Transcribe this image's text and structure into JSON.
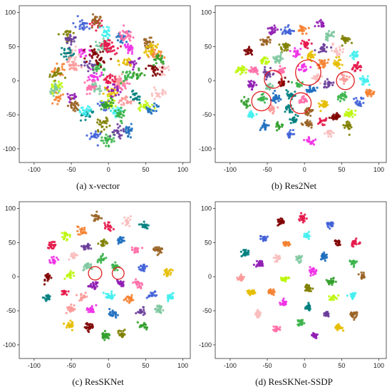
{
  "figure": {
    "panels": [
      {
        "caption": "(a) x-vector",
        "highlight_circles": []
      },
      {
        "caption": "(b) Res2Net",
        "highlight_circles": [
          {
            "x": -58,
            "y": -30,
            "r": 13
          },
          {
            "x": -42,
            "y": 2,
            "r": 12
          },
          {
            "x": 5,
            "y": 12,
            "r": 17
          },
          {
            "x": -5,
            "y": -33,
            "r": 14
          },
          {
            "x": 55,
            "y": 0,
            "r": 12
          }
        ]
      },
      {
        "caption": "(c) ResSKNet",
        "highlight_circles": [
          {
            "x": -18,
            "y": 5,
            "r": 9
          },
          {
            "x": 13,
            "y": 5,
            "r": 8
          }
        ]
      },
      {
        "caption": "(d) ResSKNet-SSDP",
        "highlight_circles": []
      }
    ],
    "circle_color": "#e02020",
    "palette": [
      "#e6194b",
      "#3cb44b",
      "#4363d8",
      "#f58231",
      "#911eb4",
      "#46f0f0",
      "#f032e6",
      "#bcf60c",
      "#fabebe",
      "#008080",
      "#9a6324",
      "#e6be00",
      "#800000",
      "#7ec8a0",
      "#808000",
      "#1f6fbf",
      "#ff6fa8",
      "#6a3d9a",
      "#33a02c",
      "#fb9a99"
    ]
  },
  "chart_data": [
    {
      "type": "scatter",
      "title": "(a) x-vector",
      "xlim": [
        -120,
        110
      ],
      "ylim": [
        -120,
        110
      ],
      "xticks": [
        -100,
        -50,
        0,
        50,
        100
      ],
      "yticks": [
        100,
        50,
        0,
        -50,
        -100
      ],
      "grid": false,
      "clusters": "~60 overlapping speaker clusters densely mixed within radius ~85 around origin"
    },
    {
      "type": "scatter",
      "title": "(b) Res2Net",
      "xlim": [
        -120,
        110
      ],
      "ylim": [
        -120,
        110
      ],
      "xticks": [
        -100,
        -50,
        0,
        50,
        100
      ],
      "yticks": [
        100,
        50,
        0,
        -50,
        -100
      ],
      "grid": false,
      "clusters": "~60 separated clusters with several overlapping (circled) regions"
    },
    {
      "type": "scatter",
      "title": "(c) ResSKNet",
      "xlim": [
        -120,
        110
      ],
      "ylim": [
        -120,
        110
      ],
      "xticks": [
        -100,
        -50,
        0,
        50,
        100
      ],
      "yticks": [
        100,
        50,
        0,
        -50,
        -100
      ],
      "grid": false,
      "clusters": "~60 well-separated clusters, two circled overlapping regions"
    },
    {
      "type": "scatter",
      "title": "(d) ResSKNet-SSDP",
      "xlim": [
        -120,
        110
      ],
      "ylim": [
        -120,
        110
      ],
      "xticks": [
        -100,
        -50,
        0,
        50,
        100
      ],
      "yticks": [
        100,
        50,
        0,
        -50,
        -100
      ],
      "grid": false,
      "clusters": "~60 compact well-separated clusters"
    }
  ]
}
